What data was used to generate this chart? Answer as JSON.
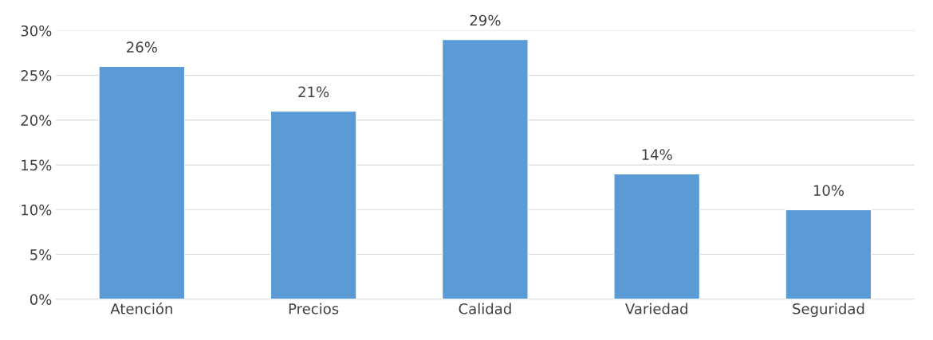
{
  "chart_data": {
    "type": "bar",
    "categories": [
      "Atención",
      "Precios",
      "Calidad",
      "Variedad",
      "Seguridad"
    ],
    "values": [
      26,
      21,
      29,
      14,
      10
    ],
    "value_labels": [
      "26%",
      "21%",
      "29%",
      "14%",
      "10%"
    ],
    "color": "#5b9bd5",
    "ylim": [
      0,
      30
    ],
    "yticks": [
      {
        "value": 0,
        "label": "0%"
      },
      {
        "value": 5,
        "label": "5%"
      },
      {
        "value": 10,
        "label": "10%"
      },
      {
        "value": 15,
        "label": "15%"
      },
      {
        "value": 20,
        "label": "20%"
      },
      {
        "value": 25,
        "label": "25%"
      },
      {
        "value": 30,
        "label": "30%"
      }
    ],
    "grid": "y",
    "legend": false
  }
}
